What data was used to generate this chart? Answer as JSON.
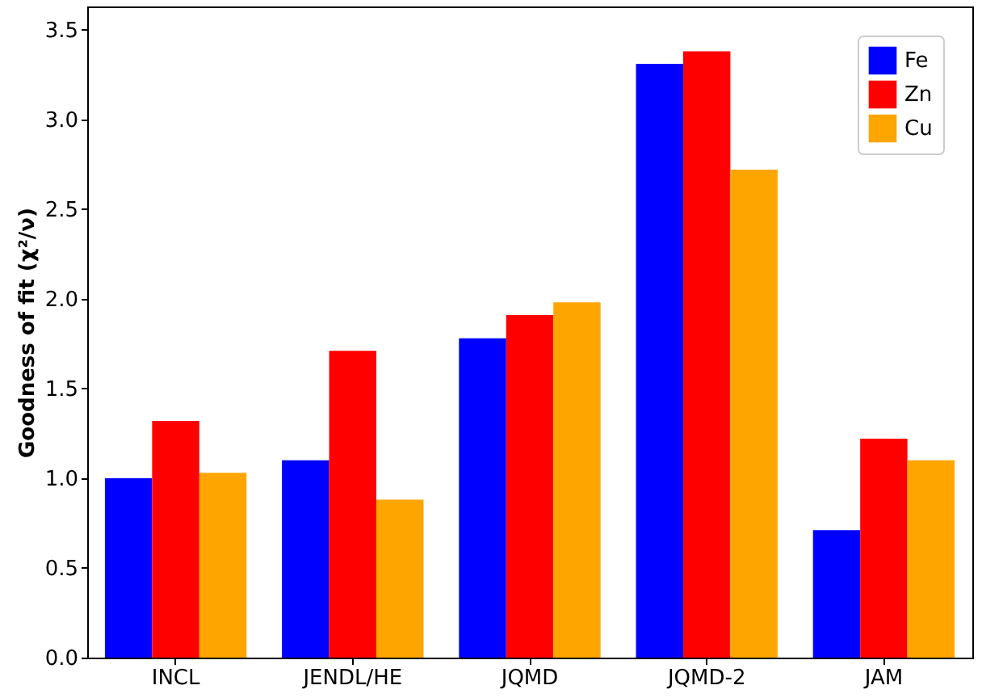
{
  "chart_data": {
    "type": "bar",
    "ylabel": "Goodness of fit (χ²/ν)",
    "categories": [
      "INCL",
      "JENDL/HE",
      "JQMD",
      "JQMD-2",
      "JAM"
    ],
    "series": [
      {
        "name": "Fe",
        "color": "#0000ff",
        "values": [
          1.0,
          1.1,
          1.78,
          3.31,
          0.71
        ]
      },
      {
        "name": "Zn",
        "color": "#ff0000",
        "values": [
          1.32,
          1.71,
          1.91,
          3.38,
          1.22
        ]
      },
      {
        "name": "Cu",
        "color": "#ffa500",
        "values": [
          1.03,
          0.88,
          1.98,
          2.72,
          1.1
        ]
      }
    ],
    "ylim": [
      0,
      3.63
    ],
    "yticks": [
      {
        "value": 0,
        "label": "0.0"
      },
      {
        "value": 0.5,
        "label": "0.5"
      },
      {
        "value": 1,
        "label": "1.0"
      },
      {
        "value": 1.5,
        "label": "1.5"
      },
      {
        "value": 2,
        "label": "2.0"
      },
      {
        "value": 2.5,
        "label": "2.5"
      },
      {
        "value": 3,
        "label": "3.0"
      },
      {
        "value": 3.5,
        "label": "3.5"
      }
    ],
    "grid": false,
    "legend": "top right"
  }
}
